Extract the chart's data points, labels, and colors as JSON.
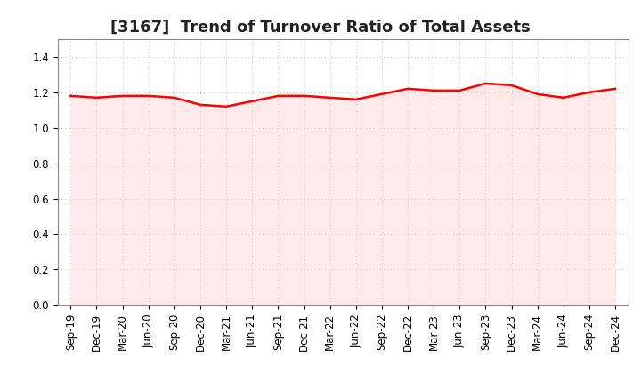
{
  "title": "[3167]  Trend of Turnover Ratio of Total Assets",
  "x_labels": [
    "Sep-19",
    "Dec-19",
    "Mar-20",
    "Jun-20",
    "Sep-20",
    "Dec-20",
    "Mar-21",
    "Jun-21",
    "Sep-21",
    "Dec-21",
    "Mar-22",
    "Jun-22",
    "Sep-22",
    "Dec-22",
    "Mar-23",
    "Jun-23",
    "Sep-23",
    "Dec-23",
    "Mar-24",
    "Jun-24",
    "Sep-24",
    "Dec-24"
  ],
  "y_values": [
    1.18,
    1.17,
    1.18,
    1.18,
    1.17,
    1.13,
    1.12,
    1.15,
    1.18,
    1.18,
    1.17,
    1.16,
    1.19,
    1.22,
    1.21,
    1.21,
    1.25,
    1.24,
    1.19,
    1.17,
    1.2,
    1.22
  ],
  "line_color": "#FF0000",
  "fill_color": "#FFCCCC",
  "fill_alpha": 0.4,
  "ylim": [
    0.0,
    1.5
  ],
  "yticks": [
    0.0,
    0.2,
    0.4,
    0.6,
    0.8,
    1.0,
    1.2,
    1.4
  ],
  "grid_color": "#bbbbbb",
  "bg_color": "#ffffff",
  "title_fontsize": 13,
  "tick_fontsize": 8.5,
  "line_width": 1.8
}
